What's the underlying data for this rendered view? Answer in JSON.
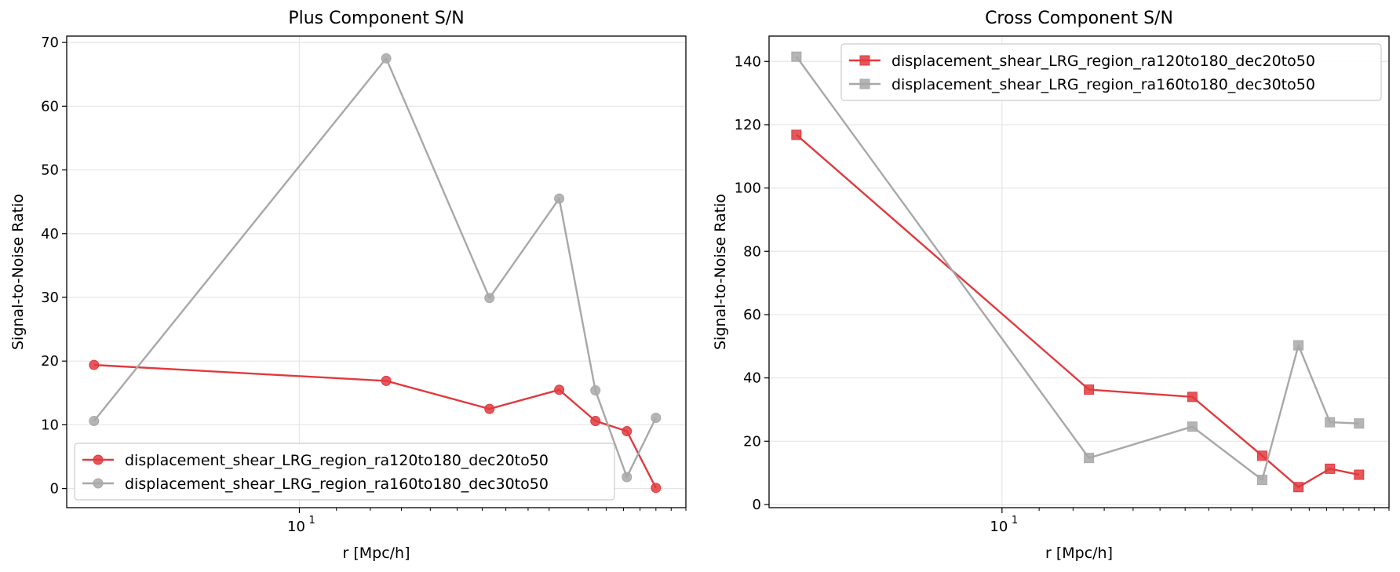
{
  "chart_data": [
    {
      "type": "line",
      "title": "Plus Component S/N",
      "xlabel": "r [Mpc/h]",
      "ylabel": "Signal-to-Noise Ratio",
      "xscale": "log",
      "xlim": [
        5.5,
        27
      ],
      "ylim": [
        -3,
        71
      ],
      "yticks": [
        0,
        10,
        20,
        30,
        40,
        50,
        60,
        70
      ],
      "xticks": [
        {
          "value": 10,
          "base": "10",
          "exp": "1"
        }
      ],
      "grid": true,
      "legend_position": "lower-left",
      "x": [
        5.9,
        12.5,
        16.3,
        19.5,
        21.4,
        23.2,
        25.0
      ],
      "series": [
        {
          "name": "displacement_shear_LRG_region_ra120to180_dec20to50",
          "color": "#e03a3e",
          "marker": "circle",
          "values": [
            19.4,
            16.9,
            12.5,
            15.5,
            10.6,
            9.0,
            0.1
          ]
        },
        {
          "name": "displacement_shear_LRG_region_ra160to180_dec30to50",
          "color": "#a8a8a8",
          "marker": "circle",
          "values": [
            10.6,
            67.5,
            29.9,
            45.5,
            15.4,
            1.8,
            11.1
          ]
        }
      ]
    },
    {
      "type": "line",
      "title": "Cross Component S/N",
      "xlabel": "r [Mpc/h]",
      "ylabel": "Signal-to-Noise Ratio",
      "xscale": "log",
      "xlim": [
        5.5,
        27
      ],
      "ylim": [
        -1,
        148
      ],
      "yticks": [
        0,
        20,
        40,
        60,
        80,
        100,
        120,
        140
      ],
      "xticks": [
        {
          "value": 10,
          "base": "10",
          "exp": "1"
        }
      ],
      "grid": true,
      "legend_position": "top-right",
      "x": [
        5.9,
        12.5,
        16.3,
        19.5,
        21.4,
        23.2,
        25.0
      ],
      "series": [
        {
          "name": "displacement_shear_LRG_region_ra120to180_dec20to50",
          "color": "#e03a3e",
          "marker": "square",
          "values": [
            116.8,
            36.3,
            34.0,
            15.4,
            5.5,
            11.3,
            9.4
          ]
        },
        {
          "name": "displacement_shear_LRG_region_ra160to180_dec30to50",
          "color": "#a8a8a8",
          "marker": "square",
          "values": [
            141.5,
            14.7,
            24.6,
            7.8,
            50.3,
            26.0,
            25.6
          ]
        }
      ]
    }
  ]
}
